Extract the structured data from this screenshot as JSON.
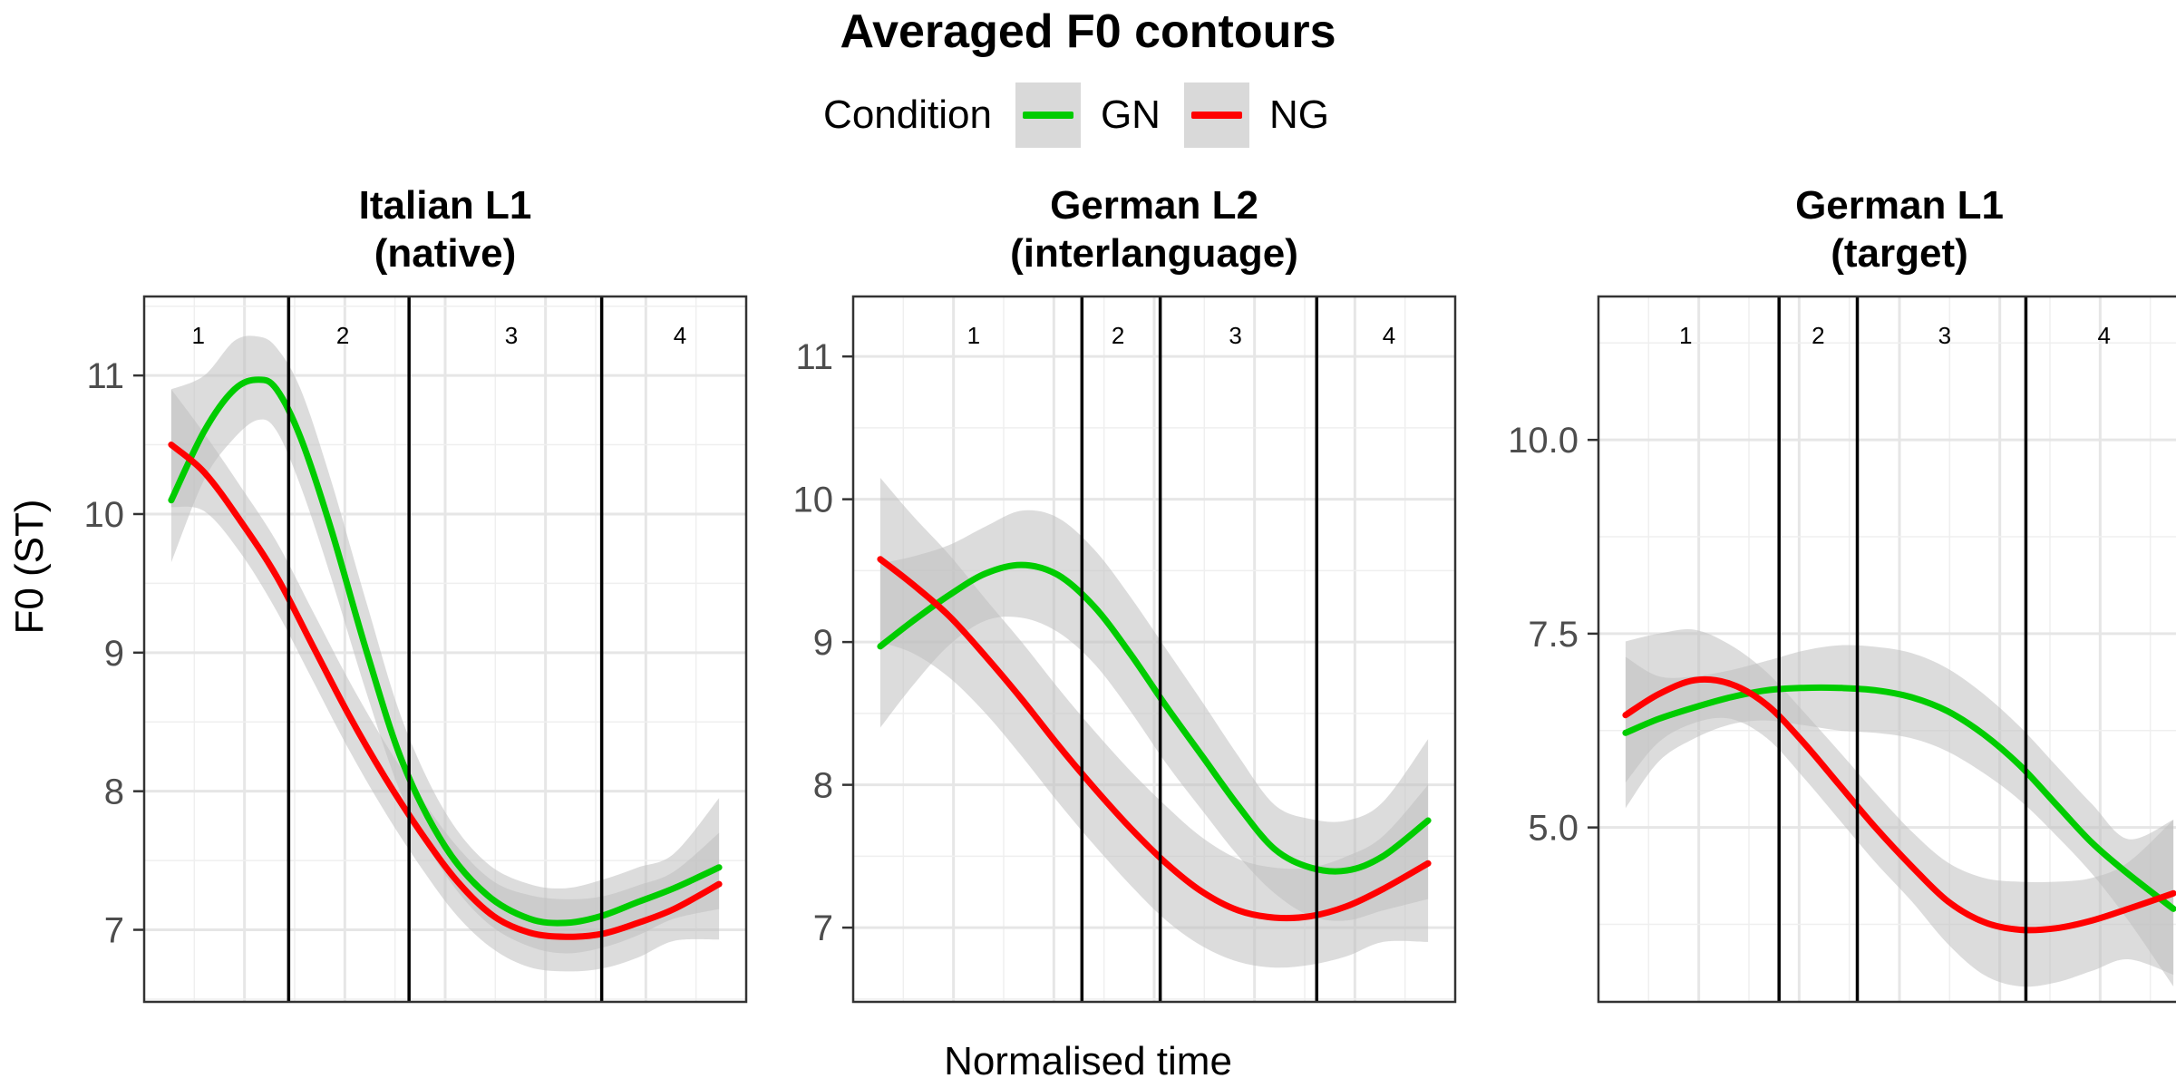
{
  "chart_data": {
    "type": "line",
    "title": "Averaged F0 contours",
    "xlabel": "Normalised time",
    "ylabel": "F0 (ST)",
    "legend": {
      "title": "Condition",
      "position": "top",
      "entries": [
        {
          "name": "GN",
          "color": "#00cc00"
        },
        {
          "name": "NG",
          "color": "#ff0000"
        }
      ]
    },
    "ribbon_color": "#bfbfbf",
    "grid": true,
    "panels": [
      {
        "title_line1": "Italian L1",
        "title_line2": "(native)",
        "xlim": [
          0,
          1
        ],
        "ylim": [
          6.48,
          11.57
        ],
        "yticks": [
          7,
          8,
          9,
          10,
          11
        ],
        "ytick_labels": [
          "7",
          "8",
          "9",
          "10",
          "11"
        ],
        "boundaries": [
          0.24,
          0.44,
          0.76
        ],
        "segment_labels": [
          {
            "text": "1",
            "x": 0.09
          },
          {
            "text": "2",
            "x": 0.33
          },
          {
            "text": "3",
            "x": 0.61
          },
          {
            "text": "4",
            "x": 0.89
          }
        ],
        "series": [
          {
            "name": "GN",
            "color": "#00cc00",
            "x": [
              0.045,
              0.1,
              0.15,
              0.19,
              0.22,
              0.26,
              0.31,
              0.37,
              0.43,
              0.5,
              0.57,
              0.64,
              0.7,
              0.76,
              0.82,
              0.88,
              0.955
            ],
            "y": [
              10.1,
              10.6,
              10.9,
              10.97,
              10.9,
              10.55,
              9.9,
              9.0,
              8.2,
              7.6,
              7.25,
              7.08,
              7.05,
              7.1,
              7.2,
              7.3,
              7.45
            ],
            "lower": [
              9.65,
              10.25,
              10.55,
              10.68,
              10.6,
              10.2,
              9.55,
              8.7,
              7.95,
              7.4,
              7.05,
              6.88,
              6.83,
              6.87,
              6.96,
              7.08,
              7.15
            ],
            "upper": [
              10.9,
              11.0,
              11.25,
              11.28,
              11.2,
              10.9,
              10.25,
              9.35,
              8.5,
              7.85,
              7.48,
              7.33,
              7.3,
              7.36,
              7.45,
              7.55,
              7.95
            ]
          },
          {
            "name": "NG",
            "color": "#ff0000",
            "x": [
              0.045,
              0.1,
              0.16,
              0.22,
              0.28,
              0.34,
              0.4,
              0.46,
              0.52,
              0.58,
              0.64,
              0.7,
              0.76,
              0.82,
              0.88,
              0.955
            ],
            "y": [
              10.5,
              10.3,
              9.95,
              9.55,
              9.05,
              8.55,
              8.1,
              7.7,
              7.35,
              7.1,
              6.98,
              6.95,
              6.97,
              7.05,
              7.15,
              7.33
            ],
            "lower": [
              10.05,
              10.02,
              9.72,
              9.3,
              8.8,
              8.3,
              7.85,
              7.45,
              7.1,
              6.86,
              6.73,
              6.7,
              6.72,
              6.8,
              6.92,
              6.93
            ],
            "upper": [
              10.9,
              10.58,
              10.2,
              9.8,
              9.3,
              8.8,
              8.35,
              7.95,
              7.6,
              7.35,
              7.25,
              7.22,
              7.24,
              7.32,
              7.42,
              7.7
            ]
          }
        ]
      },
      {
        "title_line1": "German L2",
        "title_line2": "(interlanguage)",
        "xlim": [
          0,
          1
        ],
        "ylim": [
          6.48,
          11.42
        ],
        "yticks": [
          7,
          8,
          9,
          10,
          11
        ],
        "ytick_labels": [
          "7",
          "8",
          "9",
          "10",
          "11"
        ],
        "boundaries": [
          0.38,
          0.51,
          0.77
        ],
        "segment_labels": [
          {
            "text": "1",
            "x": 0.2
          },
          {
            "text": "2",
            "x": 0.44
          },
          {
            "text": "3",
            "x": 0.635
          },
          {
            "text": "4",
            "x": 0.89
          }
        ],
        "series": [
          {
            "name": "GN",
            "color": "#00cc00",
            "x": [
              0.045,
              0.1,
              0.16,
              0.22,
              0.28,
              0.34,
              0.4,
              0.46,
              0.52,
              0.58,
              0.64,
              0.7,
              0.76,
              0.82,
              0.88,
              0.955
            ],
            "y": [
              8.97,
              9.15,
              9.33,
              9.48,
              9.54,
              9.47,
              9.25,
              8.92,
              8.55,
              8.2,
              7.85,
              7.55,
              7.42,
              7.4,
              7.5,
              7.75
            ],
            "lower": [
              8.4,
              8.7,
              8.98,
              9.15,
              9.17,
              9.07,
              8.85,
              8.52,
              8.15,
              7.82,
              7.5,
              7.24,
              7.08,
              7.05,
              7.12,
              7.2
            ],
            "upper": [
              9.55,
              9.6,
              9.68,
              9.81,
              9.92,
              9.87,
              9.65,
              9.32,
              8.95,
              8.58,
              8.2,
              7.86,
              7.76,
              7.75,
              7.88,
              8.32
            ]
          },
          {
            "name": "NG",
            "color": "#ff0000",
            "x": [
              0.045,
              0.1,
              0.16,
              0.22,
              0.28,
              0.34,
              0.4,
              0.46,
              0.52,
              0.58,
              0.64,
              0.7,
              0.76,
              0.82,
              0.88,
              0.955
            ],
            "y": [
              9.58,
              9.4,
              9.18,
              8.9,
              8.6,
              8.28,
              7.98,
              7.7,
              7.45,
              7.25,
              7.12,
              7.07,
              7.08,
              7.15,
              7.27,
              7.45
            ],
            "lower": [
              9.0,
              8.92,
              8.75,
              8.5,
              8.2,
              7.88,
              7.58,
              7.3,
              7.05,
              6.87,
              6.76,
              6.72,
              6.74,
              6.8,
              6.9,
              6.9
            ],
            "upper": [
              10.15,
              9.88,
              9.61,
              9.3,
              9.0,
              8.68,
              8.38,
              8.1,
              7.85,
              7.63,
              7.48,
              7.42,
              7.42,
              7.5,
              7.64,
              8.0
            ]
          }
        ]
      },
      {
        "title_line1": "German L1",
        "title_line2": "(target)",
        "xlim": [
          0,
          1
        ],
        "ylim": [
          2.75,
          11.85
        ],
        "yticks": [
          5.0,
          7.5,
          10.0
        ],
        "ytick_labels": [
          "5.0",
          "7.5",
          "10.0"
        ],
        "boundaries": [
          0.3,
          0.43,
          0.71
        ],
        "segment_labels": [
          {
            "text": "1",
            "x": 0.145
          },
          {
            "text": "2",
            "x": 0.365
          },
          {
            "text": "3",
            "x": 0.575
          },
          {
            "text": "4",
            "x": 0.84
          }
        ],
        "series": [
          {
            "name": "GN",
            "color": "#00cc00",
            "x": [
              0.045,
              0.1,
              0.16,
              0.22,
              0.28,
              0.34,
              0.4,
              0.46,
              0.52,
              0.58,
              0.64,
              0.7,
              0.76,
              0.82,
              0.88,
              0.955
            ],
            "y": [
              6.22,
              6.4,
              6.55,
              6.68,
              6.77,
              6.8,
              6.8,
              6.77,
              6.68,
              6.5,
              6.2,
              5.8,
              5.3,
              4.8,
              4.4,
              3.95
            ],
            "lower": [
              5.25,
              5.85,
              6.15,
              6.33,
              6.38,
              6.32,
              6.25,
              6.22,
              6.15,
              5.98,
              5.7,
              5.35,
              4.9,
              4.4,
              3.8,
              2.95
            ],
            "upper": [
              7.2,
              6.95,
              6.95,
              7.03,
              7.15,
              7.28,
              7.35,
              7.33,
              7.25,
              7.05,
              6.72,
              6.3,
              5.8,
              5.3,
              4.85,
              5.1
            ]
          },
          {
            "name": "NG",
            "color": "#ff0000",
            "x": [
              0.045,
              0.1,
              0.16,
              0.22,
              0.28,
              0.34,
              0.4,
              0.46,
              0.52,
              0.58,
              0.64,
              0.7,
              0.76,
              0.82,
              0.88,
              0.955
            ],
            "y": [
              6.45,
              6.72,
              6.9,
              6.85,
              6.58,
              6.1,
              5.55,
              5.0,
              4.5,
              4.05,
              3.78,
              3.68,
              3.7,
              3.8,
              3.95,
              4.15
            ],
            "lower": [
              5.58,
              6.1,
              6.35,
              6.4,
              6.15,
              5.65,
              5.1,
              4.55,
              4.05,
              3.5,
              3.1,
              2.95,
              3.0,
              3.15,
              3.3,
              3.1
            ],
            "upper": [
              7.4,
              7.5,
              7.55,
              7.35,
              7.0,
              6.5,
              5.98,
              5.45,
              4.95,
              4.55,
              4.35,
              4.3,
              4.3,
              4.35,
              4.55,
              5.1
            ]
          }
        ]
      }
    ]
  }
}
